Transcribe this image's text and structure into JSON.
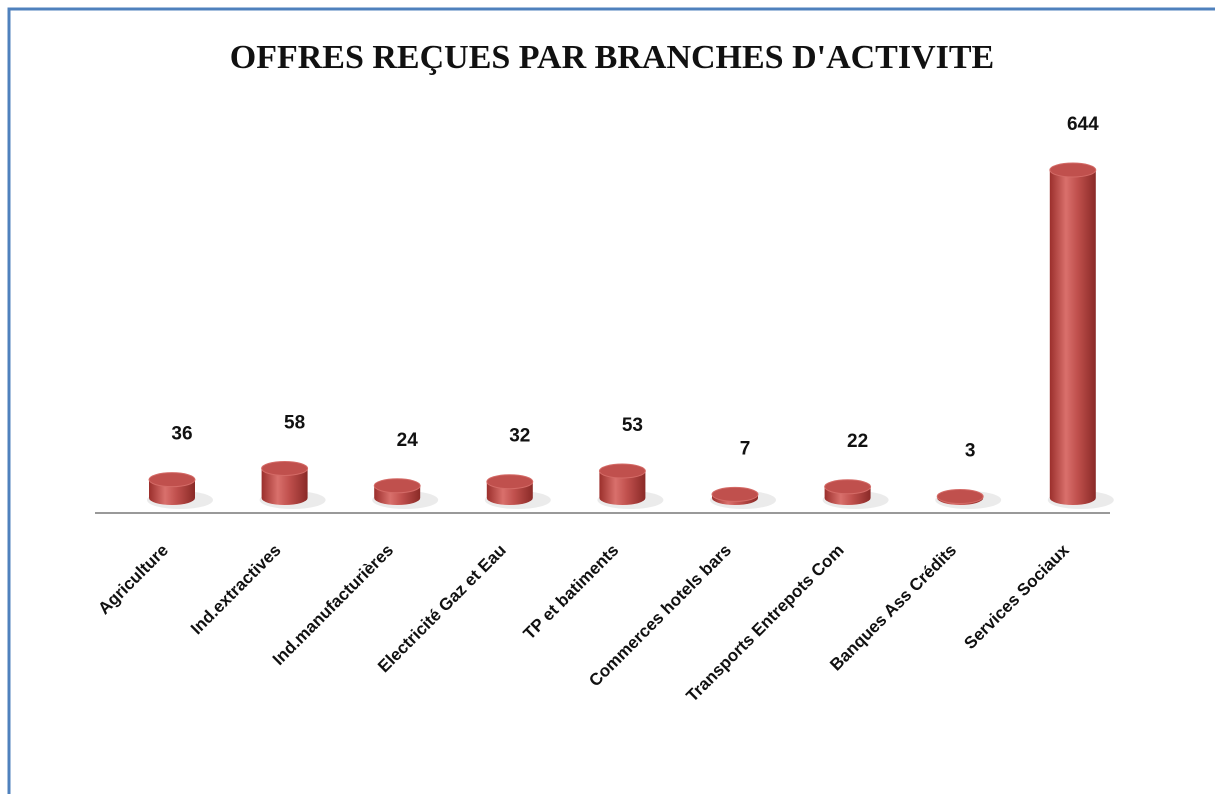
{
  "chart_data": {
    "type": "bar",
    "title": "OFFRES REÇUES PAR BRANCHES D'ACTIVITE",
    "categories": [
      "Agriculture",
      "Ind.extractives",
      "Ind.manufacturières",
      "Electricité Gaz et Eau",
      "TP et batiments",
      "Commerces hotels bars",
      "Transports Entrepots Com",
      "Banques Ass Crédits",
      "Services Sociaux"
    ],
    "values": [
      36,
      58,
      24,
      32,
      53,
      7,
      22,
      3,
      644
    ],
    "color": "#c0504d"
  }
}
